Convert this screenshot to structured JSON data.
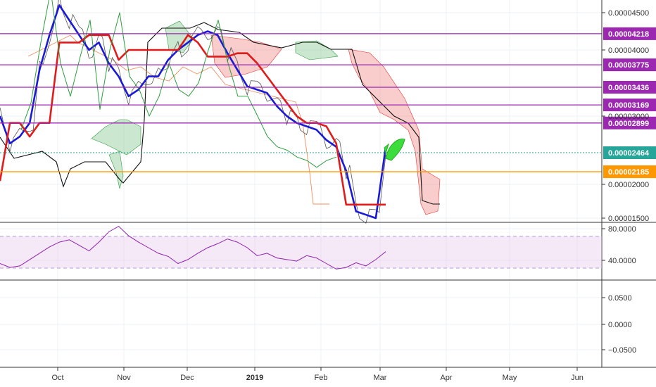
{
  "chart_data": [
    {
      "type": "line",
      "panel": "price",
      "description_type": "candlestick with ichimoku cloud",
      "x_labels": [
        "Oct",
        "Nov",
        "Dec",
        "2019",
        "Feb",
        "Mar",
        "Apr",
        "May",
        "Jun"
      ],
      "y_ticks": [
        "0.00004500",
        "0.00004000",
        "0.00003000",
        "0.00002000",
        "0.00001500"
      ],
      "ylim": [
        1.45e-05,
        4.8e-05
      ],
      "price_lines": [
        {
          "value": 4.218e-05,
          "label": "0.00004218",
          "color": "#9c27b0"
        },
        {
          "value": 3.775e-05,
          "label": "0.00003775",
          "color": "#9c27b0"
        },
        {
          "value": 3.436e-05,
          "label": "0.00003436",
          "color": "#9c27b0"
        },
        {
          "value": 3.169e-05,
          "label": "0.00003169",
          "color": "#9c27b0"
        },
        {
          "value": 2.899e-05,
          "label": "0.00002899",
          "color": "#9c27b0"
        },
        {
          "value": 2.185e-05,
          "label": "0.00002185",
          "color": "#ff9800"
        }
      ],
      "last_price": {
        "value": 2.464e-05,
        "label": "0.00002464",
        "color": "#26a69a"
      },
      "series": [
        {
          "key": "tenkan",
          "color": "#1a1ad6",
          "x": [
            0,
            4,
            8,
            12,
            16,
            20,
            24,
            28,
            32,
            36,
            40,
            44,
            48,
            52,
            56,
            60,
            64,
            68,
            72,
            76,
            80,
            84,
            88,
            92,
            96,
            100,
            104,
            108,
            112,
            116,
            120,
            124,
            128,
            132,
            136,
            140,
            144,
            148,
            152,
            156
          ],
          "values": [
            3e-05,
            2.6e-05,
            2.7e-05,
            2.9e-05,
            3.7e-05,
            4.2e-05,
            4.6e-05,
            4.4e-05,
            4.2e-05,
            4e-05,
            4.1e-05,
            3.8e-05,
            3.6e-05,
            3.3e-05,
            3.4e-05,
            3.6e-05,
            3.6e-05,
            3.85e-05,
            4e-05,
            4.1e-05,
            4.2e-05,
            4.25e-05,
            4.2e-05,
            3.95e-05,
            3.7e-05,
            3.45e-05,
            3.4e-05,
            3.35e-05,
            3.15e-05,
            3e-05,
            2.9e-05,
            2.85e-05,
            2.8e-05,
            2.65e-05,
            2.55e-05,
            2.2e-05,
            1.6e-05,
            1.55e-05,
            1.5e-05,
            2.55e-05
          ]
        },
        {
          "key": "kijun",
          "color": "#e01b1b",
          "x": [
            0,
            4,
            8,
            12,
            16,
            20,
            24,
            28,
            32,
            36,
            40,
            44,
            48,
            52,
            56,
            60,
            64,
            68,
            72,
            76,
            80,
            84,
            88,
            92,
            96,
            100,
            104,
            108,
            112,
            116,
            120,
            124,
            128,
            132,
            136,
            140,
            144,
            148,
            152,
            156
          ],
          "values": [
            2.05e-05,
            2.9e-05,
            2.9e-05,
            2.7e-05,
            2.9e-05,
            2.9e-05,
            4.1e-05,
            4.1e-05,
            4.1e-05,
            4.2e-05,
            4.2e-05,
            4.2e-05,
            3.85e-05,
            4e-05,
            4e-05,
            4e-05,
            4e-05,
            4e-05,
            4e-05,
            4.2e-05,
            4.1e-05,
            3.9e-05,
            3.9e-05,
            3.9e-05,
            3.95e-05,
            3.95e-05,
            3.8e-05,
            3.6e-05,
            3.4e-05,
            3.2e-05,
            3e-05,
            2.9e-05,
            2.9e-05,
            2.85e-05,
            2.6e-05,
            1.7e-05,
            1.7e-05,
            1.7e-05,
            1.7e-05,
            1.7e-05
          ]
        },
        {
          "key": "chikou",
          "color": "#2e9e3e",
          "x": [
            0,
            4,
            8,
            12,
            16,
            20,
            24,
            28,
            32,
            36,
            40,
            44,
            48,
            52,
            56,
            60,
            64,
            68,
            72,
            76,
            80,
            84,
            88,
            92,
            96,
            100,
            104,
            108,
            112,
            116,
            120,
            124,
            128
          ],
          "values": [
            2.8e-05,
            3.2e-05,
            4.1e-05,
            4.8e-05,
            3.8e-05,
            3.3e-05,
            3.9e-05,
            4.4e-05,
            3.1e-05,
            4e-05,
            4.5e-05,
            3.6e-05,
            3.4e-05,
            3e-05,
            3.3e-05,
            3.8e-05,
            3.4e-05,
            3.3e-05,
            3.5e-05,
            4e-05,
            4.4e-05,
            3.8e-05,
            3.3e-05,
            3.3e-05,
            3e-05,
            2.7e-05,
            2.55e-05,
            2.5e-05,
            2.4e-05,
            2.35e-05,
            2.25e-05,
            2.35e-05,
            2.4e-05
          ]
        }
      ]
    },
    {
      "type": "line",
      "panel": "rsi",
      "y_ticks": [
        "80.0000",
        "40.0000"
      ],
      "upper_band": 70,
      "lower_band": 30,
      "ylim": [
        20,
        84
      ],
      "series": [
        {
          "key": "rsi",
          "color": "#8e24aa",
          "x": [
            0,
            4,
            8,
            12,
            16,
            20,
            24,
            28,
            32,
            36,
            40,
            44,
            48,
            52,
            56,
            60,
            64,
            68,
            72,
            76,
            80,
            84,
            88,
            92,
            96,
            100,
            104,
            108,
            112,
            116,
            120,
            124,
            128,
            132,
            136,
            140,
            144,
            148,
            152,
            156
          ],
          "values": [
            36,
            31,
            33,
            41,
            49,
            57,
            63,
            66,
            59,
            52,
            63,
            76,
            83,
            71,
            63,
            56,
            49,
            45,
            36,
            41,
            49,
            56,
            61,
            67,
            63,
            56,
            46,
            49,
            43,
            41,
            39,
            46,
            43,
            36,
            29,
            31,
            37,
            33,
            41,
            51
          ]
        }
      ]
    },
    {
      "type": "line",
      "panel": "oscillator",
      "y_ticks": [
        "0.0500",
        "0.0000",
        "−0.0500"
      ]
    }
  ]
}
